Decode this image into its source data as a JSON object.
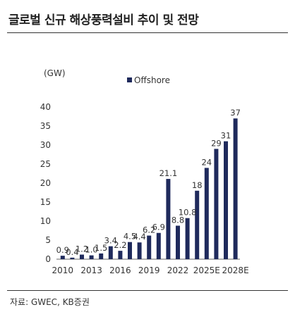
{
  "header": {
    "title": "글로벌 신규 해상풍력설비 추이 및 전망"
  },
  "footer": {
    "source": "자료: GWEC, KB증권"
  },
  "chart_data": {
    "type": "bar",
    "ylabel": "(GW)",
    "ylim": [
      0,
      40
    ],
    "yticks": [
      0,
      5,
      10,
      15,
      20,
      25,
      30,
      35,
      40
    ],
    "categories": [
      "2010",
      "2011",
      "2012",
      "2013",
      "2014",
      "2015",
      "2016",
      "2017",
      "2018",
      "2019",
      "2020",
      "2021",
      "2022",
      "2023",
      "2024",
      "2025E",
      "2026E",
      "2027E",
      "2028E"
    ],
    "xtick_labels": [
      "2010",
      "2013",
      "2016",
      "2019",
      "2022",
      "2025E",
      "2028E"
    ],
    "series": [
      {
        "name": "Offshore",
        "color": "#1f2a5c",
        "values": [
          0.9,
          0.4,
          1.2,
          1.0,
          1.5,
          3.4,
          2.2,
          4.5,
          4.4,
          6.2,
          6.9,
          21.1,
          8.8,
          10.8,
          18,
          24,
          29,
          31,
          37
        ],
        "labels": [
          "0.9",
          "0.4",
          "1.2",
          "1.0",
          "1.5",
          "3.4",
          "2.2",
          "4.5",
          "4.4",
          "6.2",
          "6.9",
          "21.1",
          "8.8",
          "10.8",
          "18",
          "24",
          "29",
          "31",
          "37"
        ]
      }
    ],
    "legend": "top",
    "grid": false
  }
}
